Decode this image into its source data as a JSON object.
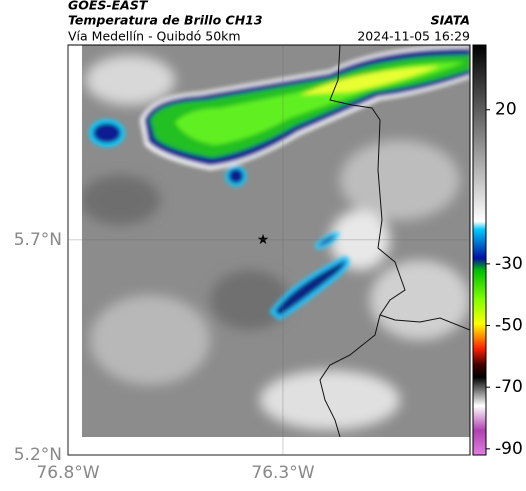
{
  "map": {
    "header": {
      "satellite": "GOES-EAST",
      "title": "Temperatura de Brillo CH13",
      "source": "SIATA",
      "subtitle": "Vía Medellín - Quibdó 50km",
      "datetime": "2024-11-05 16:29"
    },
    "xlim": [
      -76.8,
      -75.865
    ],
    "ylim": [
      5.2,
      6.153
    ],
    "lat_ticks": [
      {
        "value": 5.2,
        "label": "5.2°N"
      },
      {
        "value": 5.7,
        "label": "5.7°N"
      }
    ],
    "lon_ticks": [
      {
        "value": -76.8,
        "label": "76.8°W"
      },
      {
        "value": -76.3,
        "label": "76.3°W"
      }
    ],
    "colorbar": {
      "clim": [
        41,
        -92
      ],
      "ticks": [
        20,
        -30,
        -50,
        -70,
        -90
      ]
    }
  }
}
